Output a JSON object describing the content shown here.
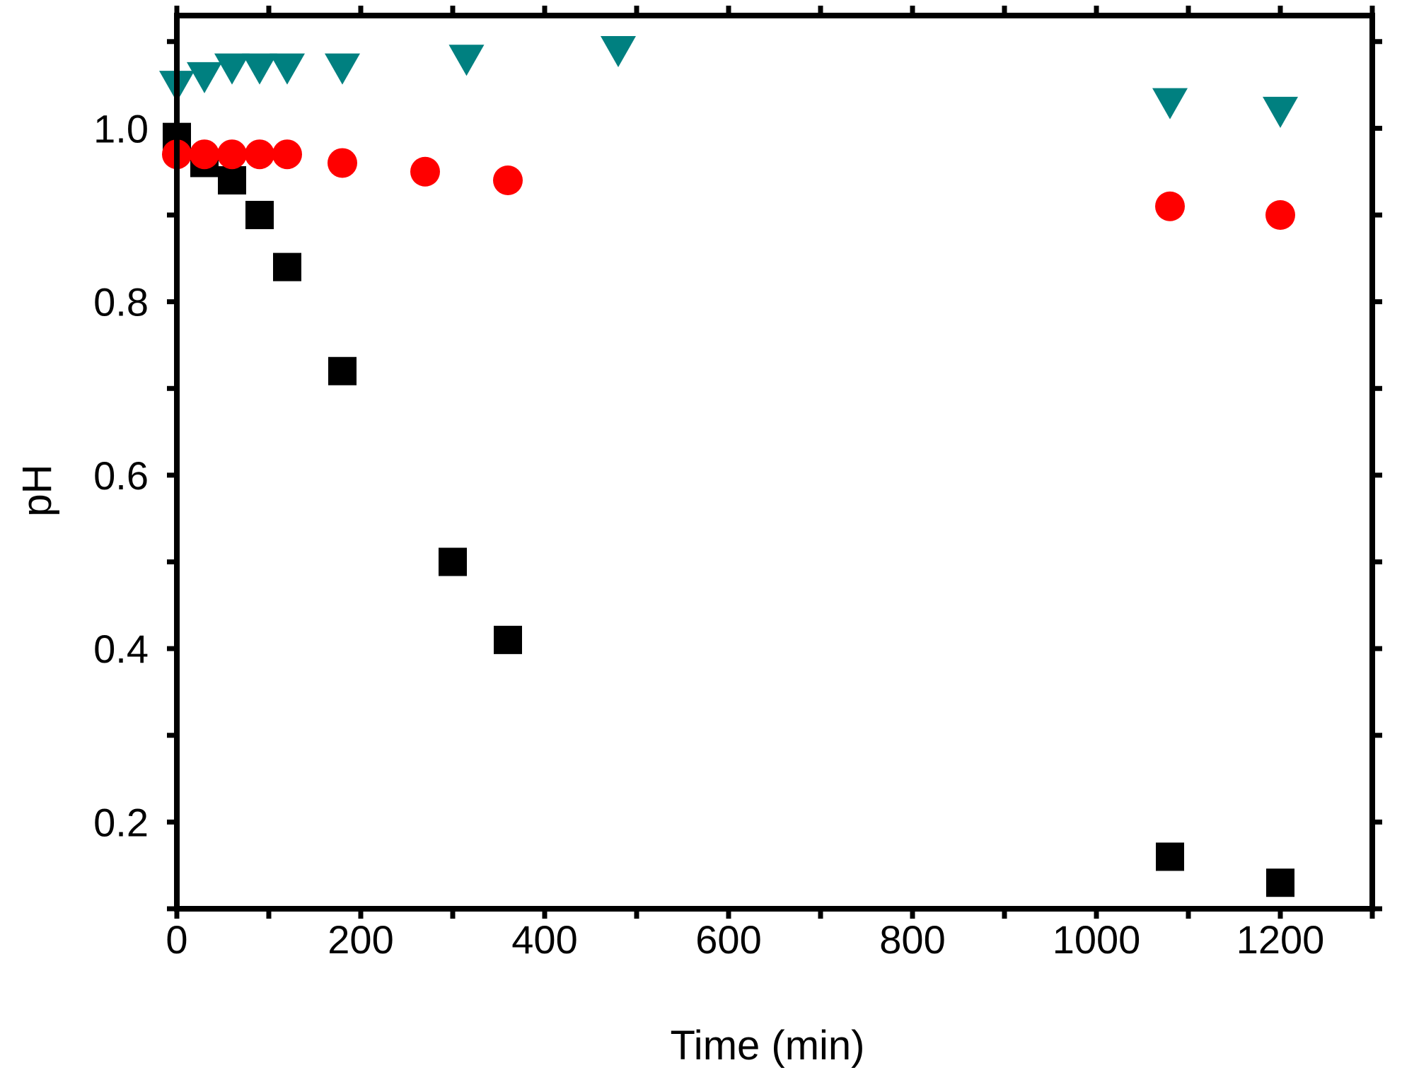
{
  "chart_data": {
    "type": "scatter",
    "title": "",
    "xlabel": "Time (min)",
    "ylabel": "pH",
    "xlim": [
      0,
      1300
    ],
    "ylim": [
      0.1,
      1.13
    ],
    "x_ticks": [
      0,
      200,
      400,
      600,
      800,
      1000,
      1200
    ],
    "y_ticks": [
      0.2,
      0.4,
      0.6,
      0.8,
      1.0
    ],
    "x_tick_labels": [
      "0",
      "200",
      "400",
      "600",
      "800",
      "1000",
      "1200"
    ],
    "y_tick_labels": [
      "0.2",
      "0.4",
      "0.6",
      "0.8",
      "1.0"
    ],
    "grid": false,
    "legend": "none",
    "series": [
      {
        "marker": "square",
        "color": "#000000",
        "x": [
          0,
          30,
          60,
          90,
          120,
          180,
          300,
          360,
          1080,
          1200
        ],
        "y": [
          0.99,
          0.96,
          0.94,
          0.9,
          0.84,
          0.72,
          0.5,
          0.41,
          0.16,
          0.13
        ]
      },
      {
        "marker": "circle",
        "color": "#ff0000",
        "x": [
          0,
          30,
          60,
          90,
          120,
          180,
          270,
          360,
          1080,
          1200
        ],
        "y": [
          0.97,
          0.97,
          0.97,
          0.97,
          0.97,
          0.96,
          0.95,
          0.94,
          0.91,
          0.9
        ]
      },
      {
        "marker": "triangle-down",
        "color": "#008080",
        "x": [
          0,
          30,
          60,
          90,
          120,
          180,
          315,
          480,
          1080,
          1200
        ],
        "y": [
          1.05,
          1.06,
          1.07,
          1.07,
          1.07,
          1.07,
          1.08,
          1.09,
          1.03,
          1.02
        ]
      }
    ]
  }
}
